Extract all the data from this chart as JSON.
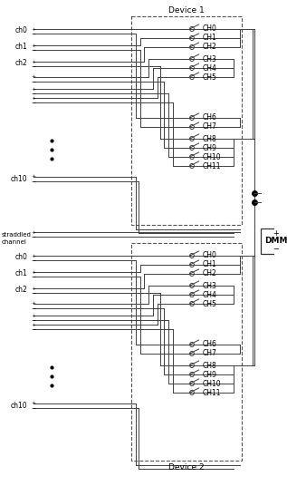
{
  "bg_color": "#ffffff",
  "line_color": "#404040",
  "text_color": "#000000",
  "device1_label": "Device 1",
  "device2_label": "Device 2",
  "ch_labels": [
    "CH0",
    "CH1",
    "CH2",
    "CH3",
    "CH4",
    "CH5",
    "CH6",
    "CH7",
    "CH8",
    "CH9",
    "CH10",
    "CH11"
  ],
  "left_labels_named": [
    "ch0",
    "ch1",
    "ch2"
  ],
  "ch10_label": "ch10",
  "straddled_label": "straddled\nchannel",
  "dmm_plus": "+",
  "dmm_text": "DMM",
  "dmm_minus": "−",
  "figsize": [
    3.17,
    5.36
  ],
  "dpi": 100
}
